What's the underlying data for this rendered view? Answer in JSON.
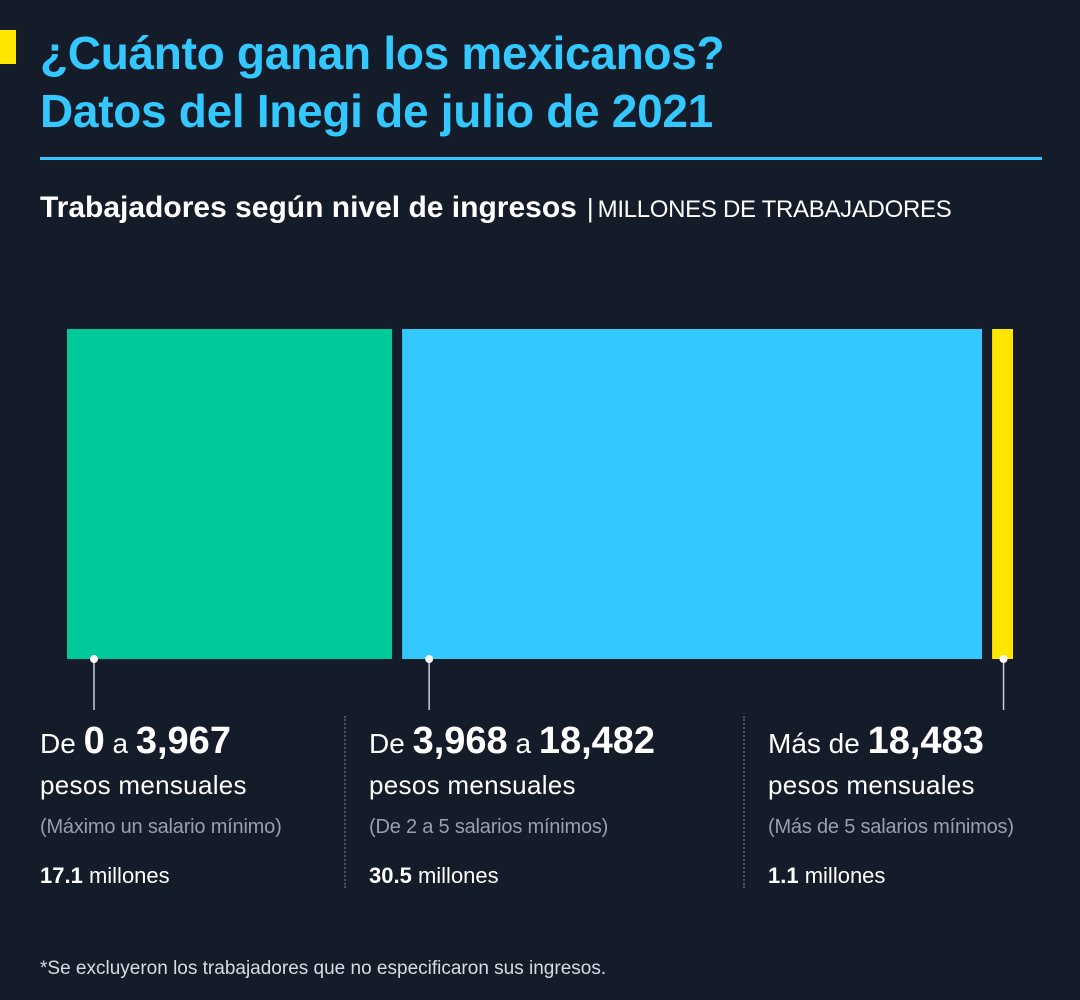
{
  "header": {
    "title_line1": "¿Cuánto ganan los mexicanos?",
    "title_line2": "Datos del Inegi de julio de 2021"
  },
  "subtitle": {
    "main": "Trabajadores según nivel de ingresos",
    "separator": "|",
    "unit": "MILLONES DE TRABAJADORES"
  },
  "colors": {
    "background": "#141b29",
    "title": "#33c8ff",
    "accent": "#ffe600",
    "segment_low": "#00c99a",
    "segment_mid": "#33c8ff",
    "segment_high": "#ffe600"
  },
  "chart_data": {
    "type": "bar",
    "layout": "proportional-stacked",
    "title": "Trabajadores según nivel de ingresos",
    "unit": "millones de trabajadores",
    "categories": [
      "De 0 a 3,967",
      "De 3,968 a 18,482",
      "Más de 18,483"
    ],
    "values": [
      17.1,
      30.5,
      1.1
    ],
    "colors": [
      "#00c99a",
      "#33c8ff",
      "#ffe600"
    ]
  },
  "groups": [
    {
      "prefix": "De",
      "low": "0",
      "connector": "a",
      "high": "3,967",
      "period": "pesos mensuales",
      "note": "(Máximo un salario mínimo)",
      "count_value": "17.1",
      "count_unit": "millones"
    },
    {
      "prefix": "De",
      "low": "3,968",
      "connector": "a",
      "high": "18,482",
      "period": "pesos mensuales",
      "note": "(De 2 a 5 salarios mínimos)",
      "count_value": "30.5",
      "count_unit": "millones"
    },
    {
      "prefix": "Más de",
      "high": "18,483",
      "period": "pesos mensuales",
      "note": "(Más de 5 salarios mínimos)",
      "count_value": "1.1",
      "count_unit": "millones"
    }
  ],
  "footnote": "*Se excluyeron los trabajadores que no especificaron sus ingresos."
}
